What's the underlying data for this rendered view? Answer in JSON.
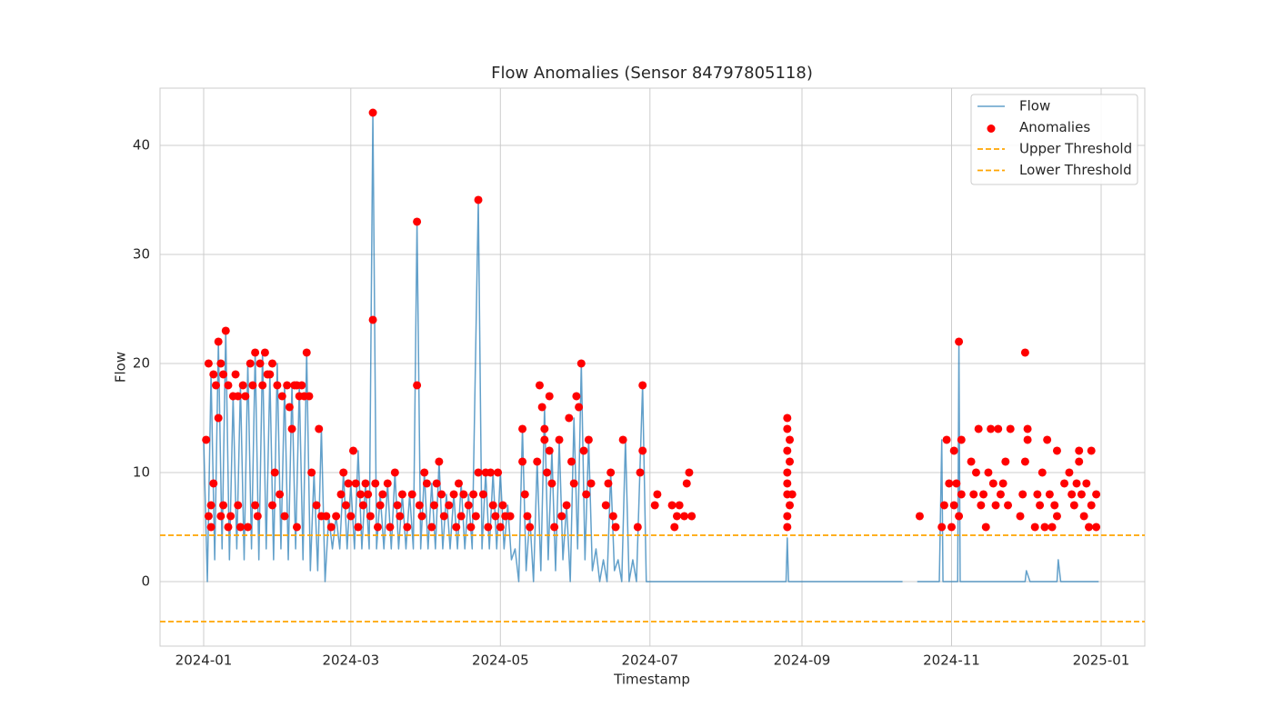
{
  "chart_data": {
    "type": "line",
    "title": "Flow Anomalies (Sensor 84797805118)",
    "x_label": "Timestamp",
    "y_label": "Flow",
    "xlim": [
      -17.8,
      383.8
    ],
    "xticks": [
      {
        "value": 0,
        "label": "2024-01"
      },
      {
        "value": 60,
        "label": "2024-03"
      },
      {
        "value": 121,
        "label": "2024-05"
      },
      {
        "value": 182,
        "label": "2024-07"
      },
      {
        "value": 244,
        "label": "2024-09"
      },
      {
        "value": 305,
        "label": "2024-11"
      },
      {
        "value": 366,
        "label": "2025-01"
      }
    ],
    "ylim": [
      -5.92,
      45.25
    ],
    "yticks": [
      0,
      10,
      20,
      30,
      40
    ],
    "grid": true,
    "legend": "upper right",
    "series": [
      {
        "name": "Flow",
        "type": "line",
        "color": "#1f77b4",
        "x": [
          0,
          1.5,
          3,
          4.5,
          6,
          7.5,
          9,
          10.5,
          12,
          13.5,
          15,
          16.5,
          18,
          19.5,
          21,
          22.5,
          24,
          25.5,
          27,
          28.5,
          30,
          31.5,
          33,
          34.5,
          36,
          37.5,
          39,
          40.5,
          42,
          43.5,
          45,
          46.5,
          48,
          49.5,
          51,
          52.5,
          54,
          55.5,
          57,
          58.5,
          60,
          61.5,
          63,
          64.5,
          66,
          67.5,
          69,
          70.5,
          72,
          73.5,
          75,
          76.5,
          78,
          79.5,
          81,
          82.5,
          84,
          85.5,
          87,
          88.5,
          90,
          91.5,
          93,
          94.5,
          96,
          97.5,
          99,
          100.5,
          102,
          103.5,
          105,
          106.5,
          108,
          109.5,
          112,
          113.5,
          115,
          116.5,
          118,
          119.5,
          121,
          122.5,
          124,
          125.5,
          127,
          128.5,
          130,
          131.5,
          133,
          134.5,
          136,
          137.5,
          139,
          140.5,
          142,
          143.5,
          145,
          146.5,
          148,
          149.5,
          151,
          152.5,
          154,
          155.5,
          157,
          158.5,
          160,
          161.5,
          163,
          164.5,
          166,
          167.5,
          169,
          170.5,
          172,
          173.5,
          175,
          176.5,
          179,
          180.5,
          182,
          237.5,
          238,
          238.5,
          285,
          288,
          291,
          300,
          301,
          301.5,
          307.5,
          308,
          308.5,
          335,
          335.5,
          337,
          348,
          348.5,
          349.5,
          365
        ],
        "values": [
          13,
          0,
          19,
          2,
          22,
          3,
          23,
          2,
          17,
          3,
          18,
          2,
          20,
          3,
          21,
          2,
          21,
          3,
          19,
          2,
          20,
          3,
          18,
          2,
          18,
          3,
          18,
          2,
          21,
          1,
          10,
          1,
          14,
          0,
          6,
          3,
          6,
          3,
          10,
          3,
          9,
          3,
          12,
          3,
          9,
          3,
          43,
          3,
          8,
          3,
          9,
          3,
          10,
          3,
          8,
          3,
          8,
          3,
          33,
          3,
          10,
          3,
          9,
          3,
          11,
          3,
          8,
          3,
          8,
          3,
          9,
          3,
          8,
          3,
          35,
          3,
          10,
          3,
          10,
          3,
          10,
          3,
          7,
          2,
          3,
          0,
          14,
          1,
          6,
          0,
          11,
          1,
          16,
          2,
          12,
          1,
          13,
          2,
          7,
          0,
          15,
          3,
          20,
          2,
          13,
          1,
          3,
          0,
          2,
          0,
          10,
          1,
          2,
          0,
          13,
          0,
          2,
          0,
          18,
          0,
          0,
          0,
          4,
          0,
          0,
          null,
          0,
          0,
          13,
          0,
          0,
          22,
          0,
          0,
          1,
          0,
          0,
          2,
          0,
          0
        ]
      },
      {
        "name": "Anomalies",
        "type": "scatter",
        "color": "#ff0000",
        "x": [
          1,
          2,
          2,
          3,
          3,
          4,
          4,
          5,
          6,
          6,
          7,
          7,
          8,
          8,
          9,
          10,
          10,
          11,
          12,
          13,
          14,
          14,
          15,
          16,
          17,
          18,
          19,
          20,
          21,
          21,
          22,
          23,
          24,
          25,
          26,
          27,
          28,
          28,
          29,
          30,
          31,
          32,
          33,
          34,
          35,
          36,
          37,
          38,
          38,
          39,
          40,
          41,
          42,
          43,
          44,
          46,
          47,
          48,
          50,
          52,
          54,
          56,
          57,
          58,
          59,
          60,
          61,
          62,
          63,
          64,
          65,
          66,
          67,
          68,
          69,
          69,
          70,
          71,
          72,
          73,
          75,
          76,
          78,
          79,
          80,
          81,
          83,
          85,
          87,
          87,
          88,
          89,
          90,
          91,
          93,
          94,
          95,
          96,
          97,
          98,
          100,
          102,
          103,
          104,
          105,
          106,
          108,
          109,
          110,
          111,
          112,
          112,
          114,
          115,
          116,
          117,
          118,
          119,
          120,
          121,
          122,
          123,
          125,
          130,
          130,
          131,
          132,
          133,
          136,
          137,
          138,
          139,
          139,
          140,
          141,
          141,
          142,
          143,
          145,
          146,
          148,
          149,
          150,
          151,
          152,
          153,
          154,
          155,
          156,
          157,
          158,
          164,
          165,
          166,
          167,
          168,
          171,
          177,
          178,
          179,
          179,
          184,
          185,
          191,
          192,
          193,
          194,
          196,
          197,
          198,
          199,
          238,
          238,
          238,
          238,
          238,
          238,
          238,
          238,
          239,
          239,
          239,
          240,
          292,
          301,
          302,
          303,
          304,
          305,
          306,
          306,
          307,
          308,
          308,
          309,
          309,
          313,
          314,
          315,
          316,
          317,
          318,
          319,
          320,
          321,
          322,
          323,
          324,
          325,
          326,
          327,
          328,
          329,
          333,
          334,
          335,
          335,
          336,
          336,
          339,
          340,
          341,
          342,
          343,
          344,
          345,
          346,
          347,
          348,
          348,
          351,
          353,
          354,
          355,
          356,
          357,
          357,
          358,
          359,
          360,
          361,
          362,
          362,
          364,
          364
        ],
        "values": [
          13,
          20,
          6,
          5,
          7,
          19,
          9,
          18,
          22,
          15,
          20,
          6,
          19,
          7,
          23,
          18,
          5,
          6,
          17,
          19,
          17,
          7,
          5,
          18,
          17,
          5,
          20,
          18,
          21,
          7,
          6,
          20,
          18,
          21,
          19,
          19,
          20,
          7,
          10,
          18,
          8,
          17,
          6,
          18,
          16,
          14,
          18,
          18,
          5,
          17,
          18,
          17,
          21,
          17,
          10,
          7,
          14,
          6,
          6,
          5,
          6,
          8,
          10,
          7,
          9,
          6,
          12,
          9,
          5,
          8,
          7,
          9,
          8,
          6,
          24,
          43,
          9,
          5,
          7,
          8,
          9,
          5,
          10,
          7,
          6,
          8,
          5,
          8,
          33,
          18,
          7,
          6,
          10,
          9,
          5,
          7,
          9,
          11,
          8,
          6,
          7,
          8,
          5,
          9,
          6,
          8,
          7,
          5,
          8,
          6,
          35,
          10,
          8,
          10,
          5,
          10,
          7,
          6,
          10,
          5,
          7,
          6,
          6,
          14,
          11,
          8,
          6,
          5,
          11,
          18,
          16,
          14,
          13,
          10,
          17,
          12,
          9,
          5,
          13,
          6,
          7,
          15,
          11,
          9,
          17,
          16,
          20,
          12,
          8,
          13,
          9,
          7,
          9,
          10,
          6,
          5,
          13,
          5,
          10,
          18,
          12,
          7,
          8,
          7,
          5,
          6,
          7,
          6,
          9,
          10,
          6,
          15,
          14,
          12,
          10,
          9,
          8,
          6,
          5,
          13,
          11,
          7,
          8,
          6,
          5,
          7,
          13,
          9,
          5,
          12,
          7,
          9,
          22,
          6,
          13,
          8,
          11,
          8,
          10,
          14,
          7,
          8,
          5,
          10,
          14,
          9,
          7,
          14,
          8,
          9,
          11,
          7,
          14,
          6,
          8,
          11,
          21,
          14,
          13,
          5,
          8,
          7,
          10,
          5,
          13,
          8,
          5,
          7,
          12,
          6,
          9,
          10,
          8,
          7,
          9,
          11,
          12,
          8,
          6,
          9,
          5,
          12,
          7,
          8,
          5
        ]
      },
      {
        "name": "Upper Threshold",
        "type": "hline",
        "color": "#ffa500",
        "value": 4.25
      },
      {
        "name": "Lower Threshold",
        "type": "hline",
        "color": "#ffa500",
        "value": -3.67
      }
    ]
  }
}
